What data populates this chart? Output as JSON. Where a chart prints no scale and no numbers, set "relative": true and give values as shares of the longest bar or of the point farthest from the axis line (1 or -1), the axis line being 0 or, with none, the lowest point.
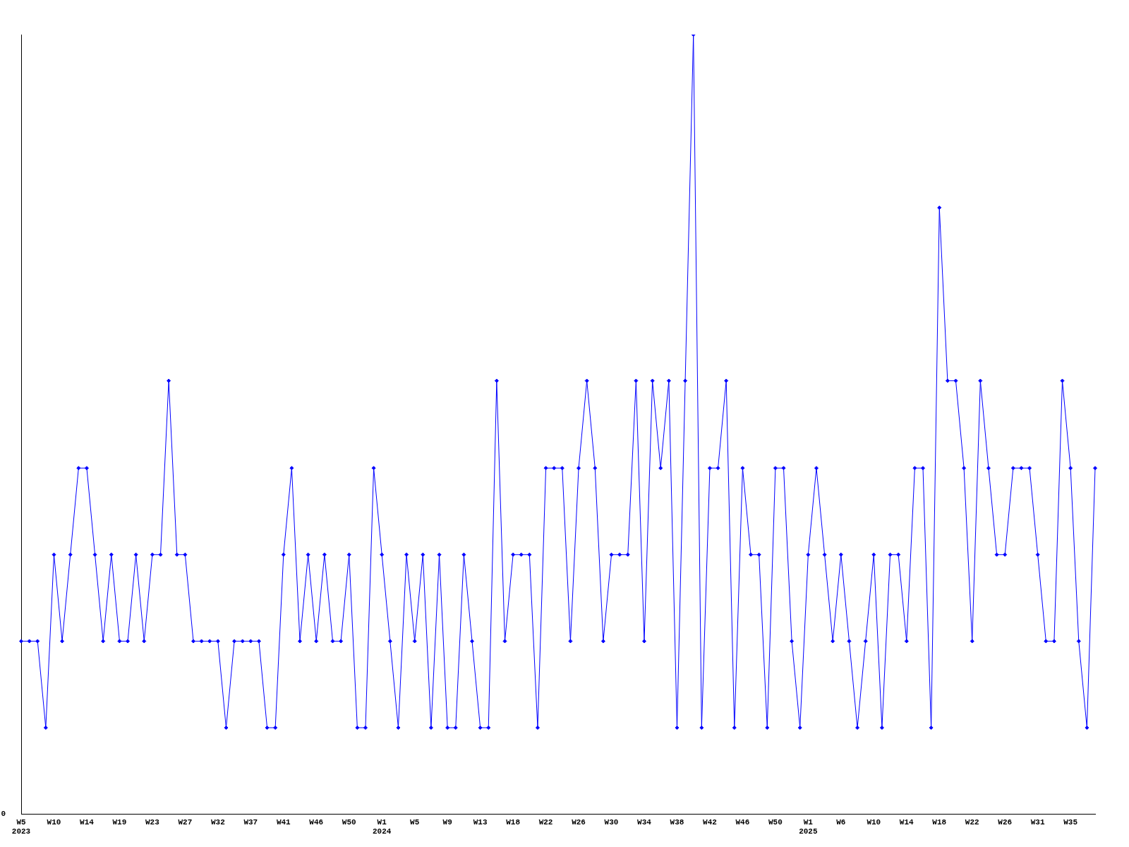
{
  "chart_data": {
    "type": "line",
    "relative": true,
    "legend": false,
    "grid": false,
    "marker": "diamond",
    "line_style": "solid",
    "annotations": [
      "0"
    ],
    "categories": [
      "W5\n2023",
      null,
      null,
      null,
      "W10",
      null,
      null,
      null,
      "W14",
      null,
      null,
      null,
      "W19",
      null,
      null,
      null,
      "W23",
      null,
      null,
      null,
      "W27",
      null,
      null,
      null,
      "W32",
      null,
      null,
      null,
      "W37",
      null,
      null,
      null,
      "W41",
      null,
      null,
      null,
      "W46",
      null,
      null,
      null,
      "W50",
      null,
      null,
      null,
      "W1\n2024",
      null,
      null,
      null,
      "W5",
      null,
      null,
      null,
      "W9",
      null,
      null,
      null,
      "W13",
      null,
      null,
      null,
      "W18",
      null,
      null,
      null,
      "W22",
      null,
      null,
      null,
      "W26",
      null,
      null,
      null,
      "W30",
      null,
      null,
      null,
      "W34",
      null,
      null,
      null,
      "W38",
      null,
      null,
      null,
      "W42",
      null,
      null,
      null,
      "W46",
      null,
      null,
      null,
      "W50",
      null,
      null,
      null,
      "W1\n2025",
      null,
      null,
      null,
      "W6",
      null,
      null,
      null,
      "W10",
      null,
      null,
      null,
      "W14",
      null,
      null,
      null,
      "W18",
      null,
      null,
      null,
      "W22",
      null,
      null,
      null,
      "W26",
      null,
      null,
      null,
      "W31",
      null,
      null,
      null,
      "W35",
      null,
      null,
      null
    ],
    "series": [
      {
        "color": "#0000ff",
        "values": [
          0.222,
          0.222,
          0.222,
          0.111,
          0.333,
          0.222,
          0.333,
          0.444,
          0.444,
          0.333,
          0.222,
          0.333,
          0.222,
          0.222,
          0.333,
          0.222,
          0.333,
          0.333,
          0.556,
          0.333,
          0.333,
          0.222,
          0.222,
          0.222,
          0.222,
          0.111,
          0.222,
          0.222,
          0.222,
          0.222,
          0.111,
          0.111,
          0.333,
          0.444,
          0.222,
          0.333,
          0.222,
          0.333,
          0.222,
          0.222,
          0.333,
          0.111,
          0.111,
          0.444,
          0.333,
          0.222,
          0.111,
          0.333,
          0.222,
          0.333,
          0.111,
          0.333,
          0.111,
          0.111,
          0.333,
          0.222,
          0.111,
          0.111,
          0.556,
          0.222,
          0.333,
          0.333,
          0.333,
          0.111,
          0.444,
          0.444,
          0.444,
          0.222,
          0.444,
          0.556,
          0.444,
          0.222,
          0.333,
          0.333,
          0.333,
          0.556,
          0.222,
          0.556,
          0.444,
          0.556,
          0.111,
          0.556,
          1,
          0.111,
          0.444,
          0.444,
          0.556,
          0.111,
          0.444,
          0.333,
          0.333,
          0.111,
          0.444,
          0.444,
          0.222,
          0.111,
          0.333,
          0.444,
          0.333,
          0.222,
          0.333,
          0.222,
          0.111,
          0.222,
          0.333,
          0.111,
          0.333,
          0.333,
          0.222,
          0.444,
          0.444,
          0.111,
          0.778,
          0.556,
          0.556,
          0.444,
          0.222,
          0.556,
          0.444,
          0.333,
          0.333,
          0.444,
          0.444,
          0.444,
          0.333,
          0.222,
          0.222,
          0.556,
          0.444,
          0.222,
          0.111,
          0.444
        ]
      }
    ]
  }
}
